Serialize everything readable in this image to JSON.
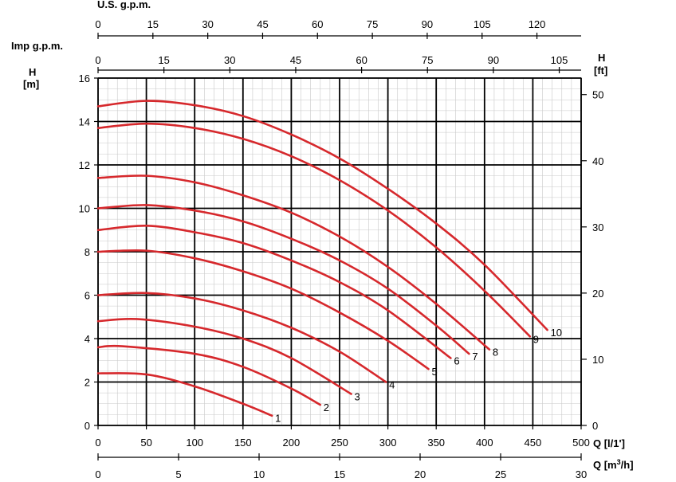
{
  "chart_data": {
    "type": "line",
    "title": "",
    "colors": {
      "curves": "#d6282c",
      "grid_major": "#000000",
      "grid_minor": "#c9c9c9"
    },
    "axes": {
      "x_lps": {
        "label": "Q [l/1']",
        "min": 0,
        "max": 500,
        "ticks": [
          "0",
          "50",
          "100",
          "150",
          "200",
          "250",
          "300",
          "350",
          "400",
          "450",
          "500"
        ]
      },
      "x_m3h": {
        "label_prefix": "Q [m",
        "label_sup": "3",
        "label_suffix": "/h]",
        "ticks": [
          "0",
          "5",
          "10",
          "15",
          "20",
          "25",
          "30"
        ]
      },
      "x_us": {
        "label": "U.S. g.p.m.",
        "ticks": [
          "0",
          "15",
          "30",
          "45",
          "60",
          "75",
          "90",
          "105",
          "120"
        ]
      },
      "x_imp": {
        "label": "Imp g.p.m.",
        "ticks": [
          "0",
          "15",
          "30",
          "45",
          "60",
          "75",
          "90",
          "105"
        ]
      },
      "y_m": {
        "label_top": "H",
        "label_unit": "[m]",
        "min": 0,
        "max": 16,
        "ticks": [
          "0",
          "2",
          "4",
          "6",
          "8",
          "10",
          "12",
          "14",
          "16"
        ]
      },
      "y_ft": {
        "label_top": "H",
        "label_unit": "[ft]",
        "ticks": [
          "0",
          "10",
          "20",
          "30",
          "40",
          "50"
        ]
      }
    },
    "grid": true,
    "series": [
      {
        "name": "1",
        "x": [
          0,
          50,
          100,
          150,
          180
        ],
        "y": [
          2.4,
          2.35,
          1.8,
          1.0,
          0.45
        ]
      },
      {
        "name": "2",
        "x": [
          0,
          25,
          100,
          150,
          200,
          230
        ],
        "y": [
          3.6,
          3.65,
          3.3,
          2.7,
          1.7,
          0.95
        ]
      },
      {
        "name": "3",
        "x": [
          0,
          40,
          100,
          150,
          200,
          262
        ],
        "y": [
          4.8,
          4.9,
          4.55,
          4.0,
          3.1,
          1.45
        ]
      },
      {
        "name": "4",
        "x": [
          0,
          50,
          100,
          150,
          200,
          250,
          298
        ],
        "y": [
          6.0,
          6.1,
          5.85,
          5.3,
          4.5,
          3.4,
          2.0
        ]
      },
      {
        "name": "5",
        "x": [
          0,
          50,
          100,
          150,
          200,
          250,
          300,
          342
        ],
        "y": [
          8.0,
          8.05,
          7.7,
          7.1,
          6.3,
          5.2,
          3.9,
          2.6
        ]
      },
      {
        "name": "6",
        "x": [
          0,
          50,
          100,
          150,
          200,
          250,
          300,
          365
        ],
        "y": [
          9.0,
          9.2,
          8.9,
          8.4,
          7.6,
          6.6,
          5.3,
          3.1
        ]
      },
      {
        "name": "7",
        "x": [
          0,
          50,
          100,
          150,
          200,
          250,
          300,
          350,
          384
        ],
        "y": [
          10.0,
          10.15,
          9.9,
          9.4,
          8.6,
          7.6,
          6.3,
          4.6,
          3.3
        ]
      },
      {
        "name": "8",
        "x": [
          0,
          50,
          100,
          150,
          200,
          250,
          300,
          350,
          405
        ],
        "y": [
          11.4,
          11.5,
          11.2,
          10.6,
          9.8,
          8.7,
          7.3,
          5.6,
          3.5
        ]
      },
      {
        "name": "9",
        "x": [
          0,
          50,
          100,
          150,
          200,
          250,
          300,
          350,
          400,
          447
        ],
        "y": [
          13.7,
          13.9,
          13.7,
          13.2,
          12.4,
          11.3,
          9.9,
          8.2,
          6.2,
          4.1
        ]
      },
      {
        "name": "10",
        "x": [
          0,
          50,
          100,
          150,
          200,
          250,
          300,
          350,
          400,
          465
        ],
        "y": [
          14.7,
          14.95,
          14.75,
          14.25,
          13.4,
          12.3,
          10.9,
          9.3,
          7.4,
          4.4
        ]
      }
    ]
  }
}
